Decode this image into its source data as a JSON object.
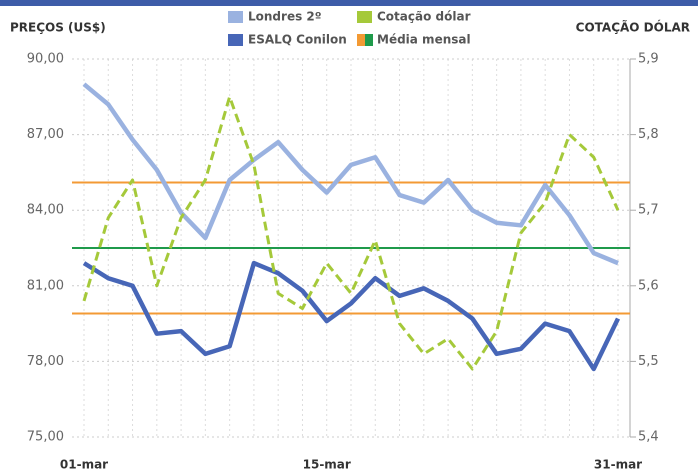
{
  "chart_data": {
    "type": "line",
    "y_axis_label": "PREÇOS (US$)",
    "y2_axis_label": "COTAÇÃO DÓLAR",
    "categories": [
      "01-mar",
      null,
      null,
      null,
      null,
      null,
      null,
      null,
      null,
      null,
      "15-mar",
      null,
      null,
      null,
      null,
      null,
      null,
      null,
      null,
      null,
      null,
      null,
      "31-mar"
    ],
    "series": [
      {
        "name": "Londres 2º",
        "color": "#9ab2e0",
        "dashed": false,
        "values": [
          89.0,
          88.2,
          86.8,
          85.6,
          83.9,
          82.9,
          85.2,
          86.0,
          86.7,
          85.6,
          84.7,
          85.8,
          86.1,
          84.6,
          84.3,
          85.2,
          84.0,
          83.5,
          83.4,
          85.0,
          83.8,
          82.3,
          81.9
        ],
        "mean": 85.1,
        "mean_color": "#f39a34"
      },
      {
        "name": "ESALQ Conilon",
        "color": "#4766b7",
        "dashed": false,
        "values": [
          81.9,
          81.3,
          81.0,
          79.1,
          79.2,
          78.3,
          78.6,
          81.9,
          81.5,
          80.8,
          79.6,
          80.3,
          81.3,
          80.6,
          80.9,
          80.4,
          79.7,
          78.3,
          78.5,
          79.5,
          79.2,
          77.7,
          79.7
        ],
        "mean": 79.9,
        "mean_color": "#f39a34"
      },
      {
        "name": "Cotação dólar",
        "color": "#a5c93a",
        "dashed": true,
        "axis": "y2",
        "values": [
          5.58,
          5.69,
          5.74,
          5.6,
          5.69,
          5.74,
          5.85,
          5.76,
          5.59,
          5.57,
          5.63,
          5.59,
          5.66,
          5.55,
          5.51,
          5.53,
          5.49,
          5.54,
          5.67,
          5.71,
          5.8,
          5.77,
          5.7
        ],
        "mean": 5.65,
        "mean_color": "#1f9a4b"
      }
    ],
    "mean_legend": "Média mensal",
    "mean_legend_colors": [
      "#f39a34",
      "#1f9a4b"
    ],
    "ylim": [
      75,
      90
    ],
    "yticks": [
      {
        "value": 75,
        "label": "75,00"
      },
      {
        "value": 78,
        "label": "78,00"
      },
      {
        "value": 81,
        "label": "81,00"
      },
      {
        "value": 84,
        "label": "84,00"
      },
      {
        "value": 87,
        "label": "87,00"
      },
      {
        "value": 90,
        "label": "90,00"
      }
    ],
    "y2lim": [
      5.4,
      5.9
    ],
    "y2ticks": [
      {
        "value": 5.4,
        "label": "5,4"
      },
      {
        "value": 5.5,
        "label": "5,5"
      },
      {
        "value": 5.6,
        "label": "5,6"
      },
      {
        "value": 5.7,
        "label": "5,7"
      },
      {
        "value": 5.8,
        "label": "5,8"
      },
      {
        "value": 5.9,
        "label": "5,9"
      }
    ],
    "grid": true
  }
}
